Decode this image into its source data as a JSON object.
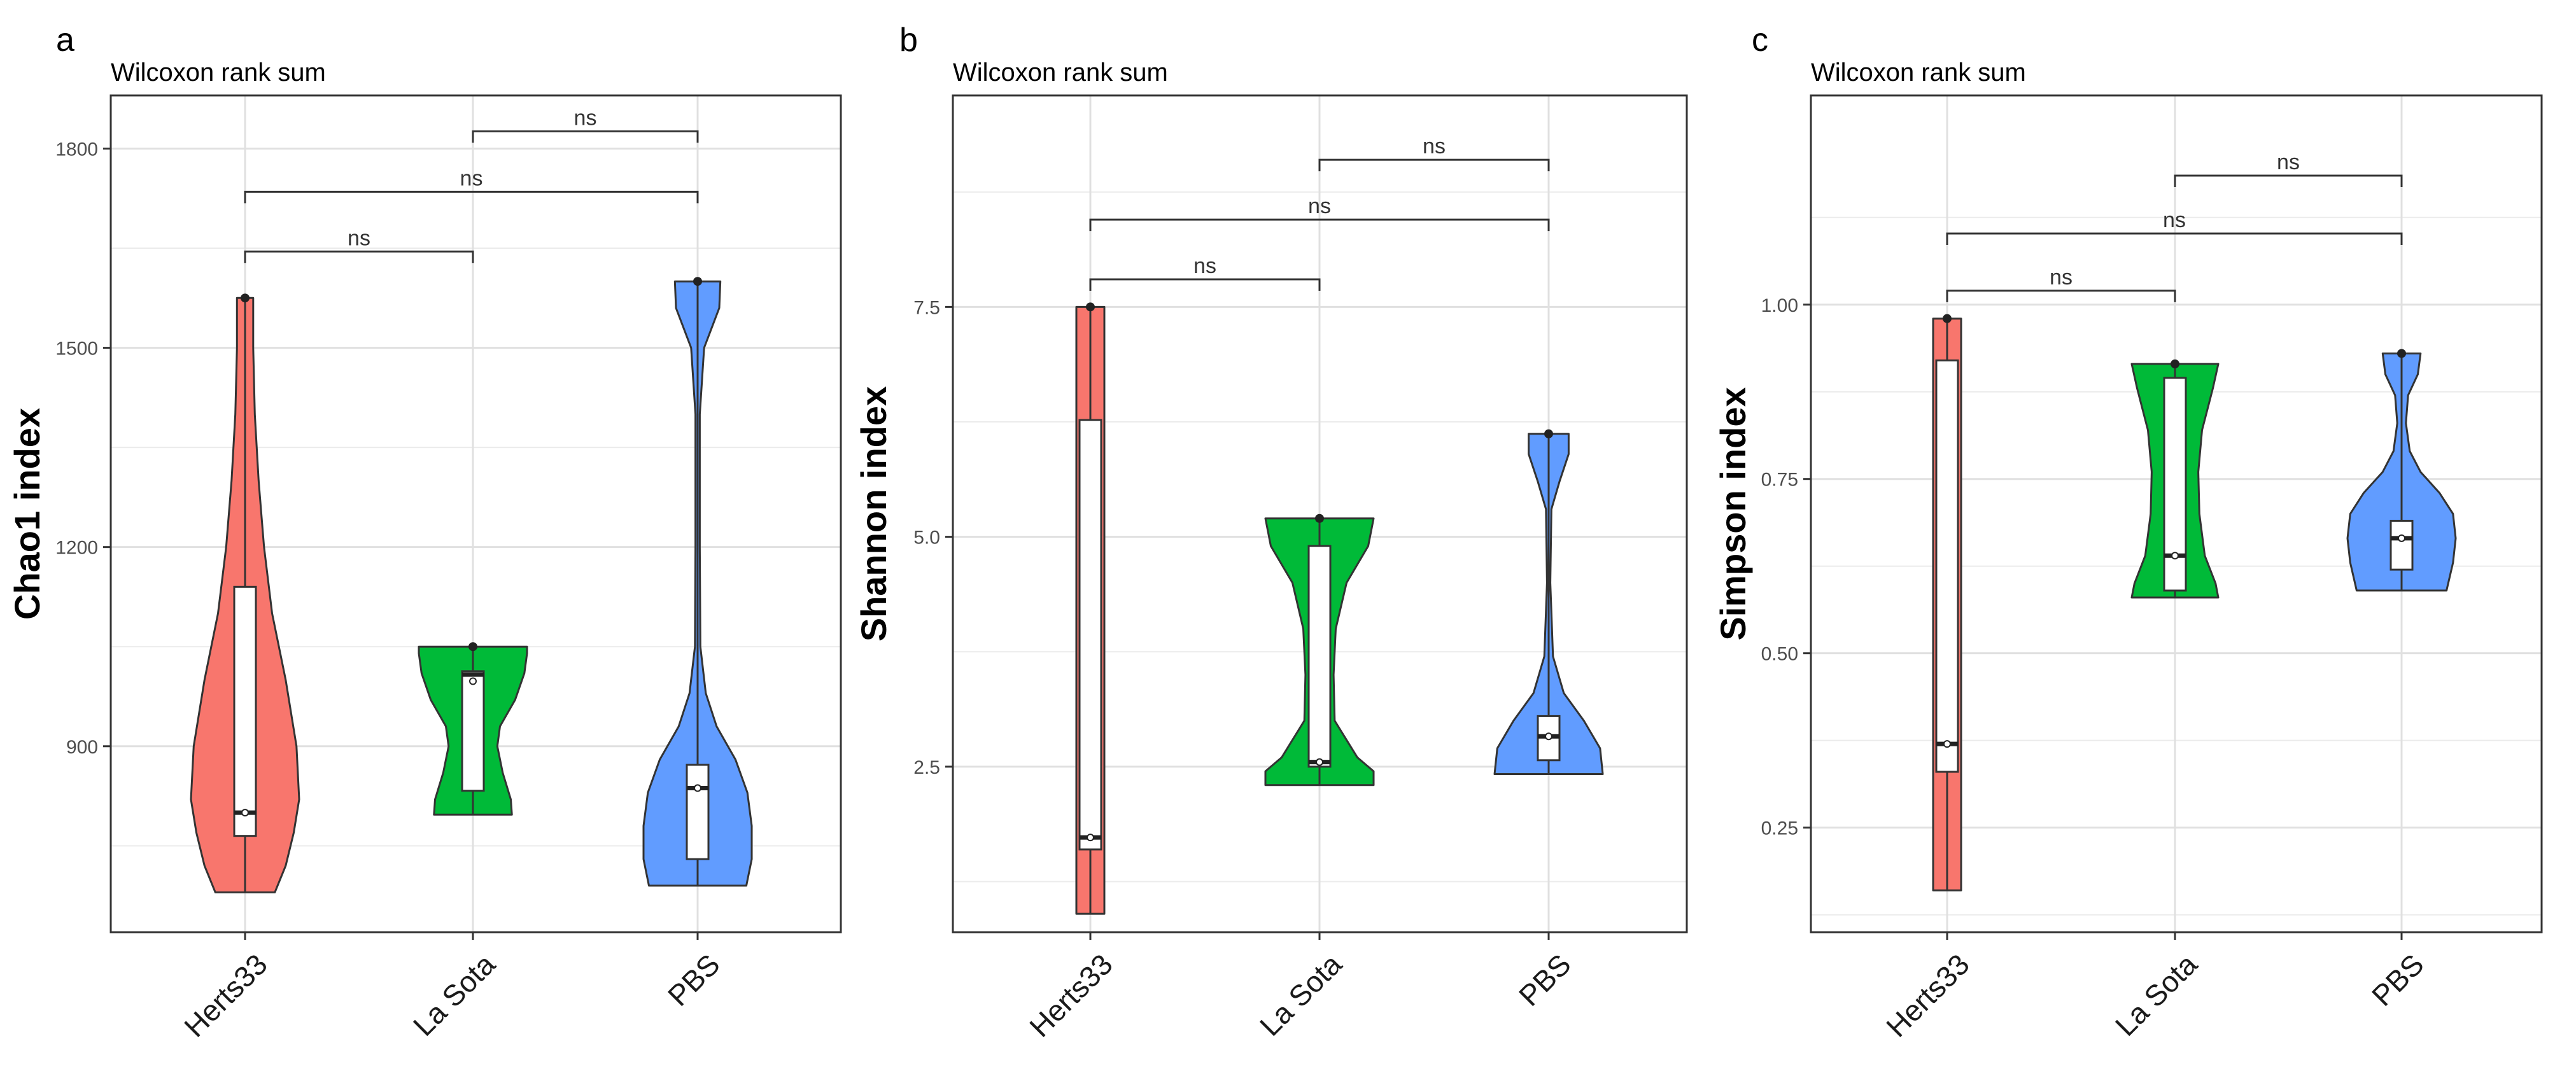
{
  "figure": {
    "colors": {
      "Herts33": "#F8766D",
      "La Sota": "#00BA38",
      "PBS": "#619CFF",
      "panel_border": "#333333",
      "grid": "#EBEBEB",
      "text": "#000000",
      "axis_text": "#4D4D4D"
    }
  },
  "chart_data": [
    {
      "type": "violin",
      "panel_label": "a",
      "subtitle": "Wilcoxon rank sum",
      "title": "",
      "xlabel": "",
      "ylabel": "Chao1 index",
      "categories": [
        "Herts33",
        "La Sota",
        "PBS"
      ],
      "ylim": [
        620,
        1880
      ],
      "yticks": [
        900,
        1200,
        1500,
        1800
      ],
      "ytick_labels": [
        "900",
        "1200",
        "1500",
        "1800"
      ],
      "grid": true,
      "groups": [
        {
          "name": "Herts33",
          "min": 680,
          "max": 1575,
          "q1": 765,
          "median": 800,
          "q3": 1140,
          "mean": 800,
          "density": [
            [
              680,
              0.55
            ],
            [
              720,
              0.75
            ],
            [
              770,
              0.9
            ],
            [
              820,
              1.0
            ],
            [
              900,
              0.95
            ],
            [
              1000,
              0.75
            ],
            [
              1100,
              0.5
            ],
            [
              1200,
              0.35
            ],
            [
              1300,
              0.25
            ],
            [
              1400,
              0.18
            ],
            [
              1500,
              0.15
            ],
            [
              1575,
              0.15
            ]
          ]
        },
        {
          "name": "La Sota",
          "min": 797,
          "max": 1050,
          "q1": 833,
          "median": 1008,
          "q3": 1013,
          "mean": 998,
          "density": [
            [
              797,
              0.72
            ],
            [
              820,
              0.7
            ],
            [
              860,
              0.55
            ],
            [
              900,
              0.45
            ],
            [
              930,
              0.5
            ],
            [
              970,
              0.78
            ],
            [
              1010,
              0.95
            ],
            [
              1040,
              1.0
            ],
            [
              1050,
              1.0
            ]
          ]
        },
        {
          "name": "PBS",
          "min": 690,
          "max": 1600,
          "q1": 730,
          "median": 837,
          "q3": 872,
          "mean": 837,
          "density": [
            [
              690,
              0.9
            ],
            [
              730,
              1.0
            ],
            [
              780,
              1.0
            ],
            [
              830,
              0.92
            ],
            [
              880,
              0.7
            ],
            [
              930,
              0.35
            ],
            [
              980,
              0.15
            ],
            [
              1050,
              0.05
            ],
            [
              1200,
              0.04
            ],
            [
              1400,
              0.04
            ],
            [
              1500,
              0.12
            ],
            [
              1560,
              0.4
            ],
            [
              1600,
              0.42
            ]
          ]
        }
      ],
      "comparisons": [
        {
          "groups": [
            "La Sota",
            "PBS"
          ],
          "label": "ns",
          "y": 1826
        },
        {
          "groups": [
            "Herts33",
            "PBS"
          ],
          "label": "ns",
          "y": 1735
        },
        {
          "groups": [
            "Herts33",
            "La Sota"
          ],
          "label": "ns",
          "y": 1645
        }
      ]
    },
    {
      "type": "violin",
      "panel_label": "b",
      "subtitle": "Wilcoxon rank sum",
      "title": "",
      "xlabel": "",
      "ylabel": "Shannon index",
      "categories": [
        "Herts33",
        "La Sota",
        "PBS"
      ],
      "ylim": [
        0.7,
        9.8
      ],
      "yticks": [
        2.5,
        5.0,
        7.5
      ],
      "ytick_labels": [
        "2.5",
        "5.0",
        "7.5"
      ],
      "grid": true,
      "groups": [
        {
          "name": "Herts33",
          "min": 0.9,
          "max": 7.5,
          "q1": 1.6,
          "median": 1.73,
          "q3": 6.27,
          "mean": 1.73,
          "density": [
            [
              0.9,
              0.1
            ],
            [
              7.5,
              0.1
            ]
          ]
        },
        {
          "name": "La Sota",
          "min": 2.3,
          "max": 5.2,
          "q1": 2.5,
          "median": 2.55,
          "q3": 4.9,
          "mean": 2.55,
          "density": [
            [
              2.3,
              1.0
            ],
            [
              2.45,
              1.0
            ],
            [
              2.6,
              0.7
            ],
            [
              3.0,
              0.28
            ],
            [
              3.5,
              0.26
            ],
            [
              4.0,
              0.3
            ],
            [
              4.5,
              0.5
            ],
            [
              4.9,
              0.9
            ],
            [
              5.2,
              1.0
            ]
          ]
        },
        {
          "name": "PBS",
          "min": 2.42,
          "max": 6.12,
          "q1": 2.57,
          "median": 2.83,
          "q3": 3.05,
          "mean": 2.83,
          "density": [
            [
              2.42,
              1.0
            ],
            [
              2.7,
              0.95
            ],
            [
              3.0,
              0.65
            ],
            [
              3.3,
              0.28
            ],
            [
              3.7,
              0.08
            ],
            [
              4.5,
              0.03
            ],
            [
              5.3,
              0.05
            ],
            [
              5.6,
              0.2
            ],
            [
              5.9,
              0.37
            ],
            [
              6.12,
              0.37
            ]
          ]
        }
      ],
      "comparisons": [
        {
          "groups": [
            "La Sota",
            "PBS"
          ],
          "label": "ns",
          "y": 9.1
        },
        {
          "groups": [
            "Herts33",
            "PBS"
          ],
          "label": "ns",
          "y": 8.45
        },
        {
          "groups": [
            "Herts33",
            "La Sota"
          ],
          "label": "ns",
          "y": 7.8
        }
      ]
    },
    {
      "type": "violin",
      "panel_label": "c",
      "subtitle": "Wilcoxon rank sum",
      "title": "",
      "xlabel": "",
      "ylabel": "Simpson index",
      "categories": [
        "Herts33",
        "La Sota",
        "PBS"
      ],
      "ylim": [
        0.1,
        1.3
      ],
      "yticks": [
        0.25,
        0.5,
        0.75,
        1.0
      ],
      "ytick_labels": [
        "0.25",
        "0.50",
        "0.75",
        "1.00"
      ],
      "grid": true,
      "groups": [
        {
          "name": "Herts33",
          "min": 0.16,
          "max": 0.98,
          "q1": 0.33,
          "median": 0.37,
          "q3": 0.92,
          "mean": 0.37,
          "density": [
            [
              0.16,
              0.15
            ],
            [
              0.98,
              0.15
            ]
          ]
        },
        {
          "name": "La Sota",
          "min": 0.58,
          "max": 0.915,
          "q1": 0.59,
          "median": 0.64,
          "q3": 0.895,
          "mean": 0.64,
          "density": [
            [
              0.58,
              0.8
            ],
            [
              0.6,
              0.75
            ],
            [
              0.64,
              0.55
            ],
            [
              0.7,
              0.45
            ],
            [
              0.76,
              0.43
            ],
            [
              0.82,
              0.5
            ],
            [
              0.88,
              0.7
            ],
            [
              0.915,
              0.8
            ]
          ]
        },
        {
          "name": "PBS",
          "min": 0.59,
          "max": 0.93,
          "q1": 0.62,
          "median": 0.665,
          "q3": 0.69,
          "mean": 0.665,
          "density": [
            [
              0.59,
              0.83
            ],
            [
              0.63,
              0.95
            ],
            [
              0.665,
              1.0
            ],
            [
              0.7,
              0.95
            ],
            [
              0.73,
              0.7
            ],
            [
              0.76,
              0.35
            ],
            [
              0.79,
              0.15
            ],
            [
              0.83,
              0.08
            ],
            [
              0.87,
              0.12
            ],
            [
              0.9,
              0.3
            ],
            [
              0.93,
              0.35
            ]
          ]
        }
      ],
      "comparisons": [
        {
          "groups": [
            "La Sota",
            "PBS"
          ],
          "label": "ns",
          "y": 1.185
        },
        {
          "groups": [
            "Herts33",
            "PBS"
          ],
          "label": "ns",
          "y": 1.102
        },
        {
          "groups": [
            "Herts33",
            "La Sota"
          ],
          "label": "ns",
          "y": 1.02
        }
      ]
    }
  ]
}
